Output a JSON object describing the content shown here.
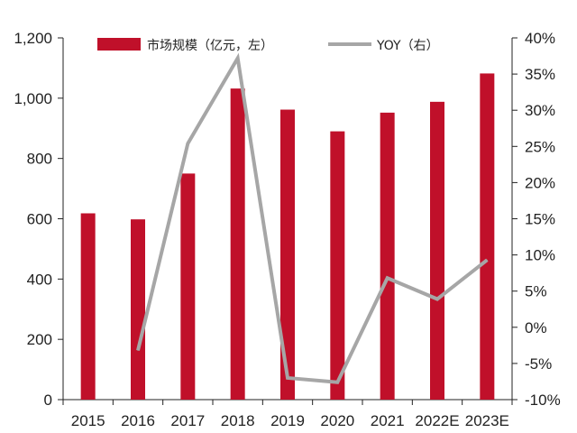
{
  "chart_data": {
    "type": "bar",
    "categories": [
      "2015",
      "2016",
      "2017",
      "2018",
      "2019",
      "2020",
      "2021",
      "2022E",
      "2023E"
    ],
    "series": [
      {
        "name": "市场规模（亿元，左）",
        "type": "bar",
        "axis": "left",
        "color": "#C0102A",
        "values": [
          618,
          598,
          750,
          1032,
          962,
          890,
          952,
          988,
          1082
        ]
      },
      {
        "name": "YOY（右）",
        "type": "line",
        "axis": "right",
        "color": "#A6A6A6",
        "values": [
          null,
          -3.2,
          25.4,
          37.2,
          -7.0,
          -7.6,
          6.8,
          3.9,
          9.3
        ]
      }
    ],
    "y_left": {
      "range": [
        0,
        1200
      ],
      "ticks": [
        0,
        200,
        400,
        600,
        800,
        1000,
        1200
      ],
      "tick_labels": [
        "0",
        "200",
        "400",
        "600",
        "800",
        "1,000",
        "1,200"
      ]
    },
    "y_right": {
      "range": [
        -10,
        40
      ],
      "ticks": [
        -10,
        -5,
        0,
        5,
        10,
        15,
        20,
        25,
        30,
        35,
        40
      ],
      "tick_labels": [
        "-10%",
        "-5%",
        "0%",
        "5%",
        "10%",
        "15%",
        "20%",
        "25%",
        "30%",
        "35%",
        "40%"
      ]
    },
    "grid": false,
    "legend_position": "top"
  }
}
